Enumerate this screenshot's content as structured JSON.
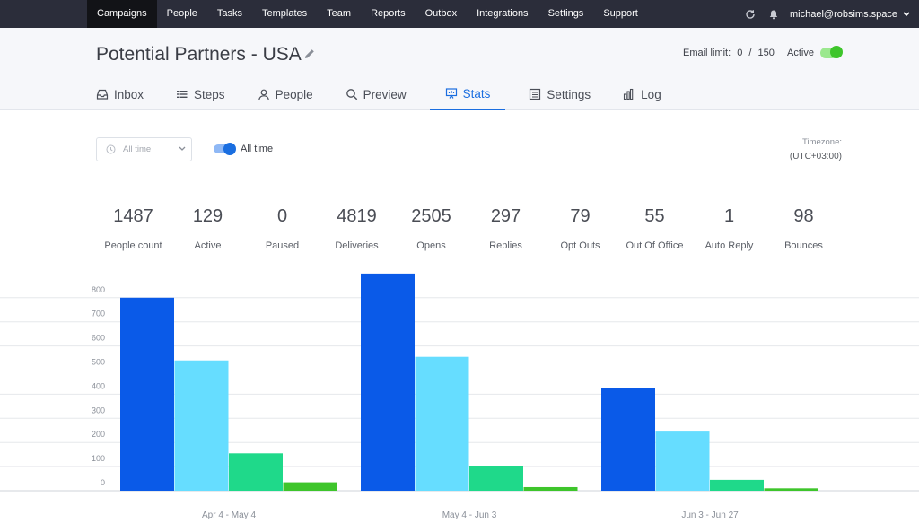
{
  "topnav": {
    "items": [
      "Campaigns",
      "People",
      "Tasks",
      "Templates",
      "Team",
      "Reports",
      "Outbox",
      "Integrations",
      "Settings",
      "Support"
    ],
    "active": "Campaigns",
    "user": "michael@robsims.space"
  },
  "header": {
    "title": "Potential Partners - USA",
    "email_limit_label": "Email limit:",
    "email_used": "0",
    "email_sep": "/",
    "email_total": "150",
    "active_label": "Active",
    "active_on": true
  },
  "tabs": [
    {
      "label": "Inbox",
      "icon": "inbox-icon"
    },
    {
      "label": "Steps",
      "icon": "list-icon"
    },
    {
      "label": "People",
      "icon": "people-icon"
    },
    {
      "label": "Preview",
      "icon": "search-icon"
    },
    {
      "label": "Stats",
      "icon": "stats-icon",
      "active": true
    },
    {
      "label": "Settings",
      "icon": "settings-icon"
    },
    {
      "label": "Log",
      "icon": "bar-chart-icon"
    }
  ],
  "controls": {
    "date_select_placeholder": "All time",
    "all_time_toggle_label": "All time",
    "timezone_label": "Timezone:",
    "timezone_value": "(UTC+03:00)"
  },
  "stats": [
    {
      "value": "1487",
      "label": "People count"
    },
    {
      "value": "129",
      "label": "Active"
    },
    {
      "value": "0",
      "label": "Paused"
    },
    {
      "value": "4819",
      "label": "Deliveries"
    },
    {
      "value": "2505",
      "label": "Opens"
    },
    {
      "value": "297",
      "label": "Replies"
    },
    {
      "value": "79",
      "label": "Opt Outs"
    },
    {
      "value": "55",
      "label": "Out Of Office"
    },
    {
      "value": "1",
      "label": "Auto Reply"
    },
    {
      "value": "98",
      "label": "Bounces"
    }
  ],
  "colors": {
    "accent": "#1a6ee0",
    "series": [
      "#0a5ae8",
      "#66ddff",
      "#1fd98a",
      "#3ec52b"
    ]
  },
  "chart_data": {
    "type": "bar",
    "categories": [
      "Apr 4 - May 4",
      "May 4 - Jun 3",
      "Jun 3 - Jun 27"
    ],
    "series": [
      {
        "values": [
          800,
          900,
          425
        ]
      },
      {
        "values": [
          540,
          555,
          245
        ]
      },
      {
        "values": [
          155,
          102,
          45
        ]
      },
      {
        "values": [
          35,
          15,
          10
        ]
      }
    ],
    "yticks": [
      0,
      100,
      200,
      300,
      400,
      500,
      600,
      700,
      800
    ],
    "ylim": [
      0,
      900
    ],
    "grid": true,
    "legend": "none"
  }
}
